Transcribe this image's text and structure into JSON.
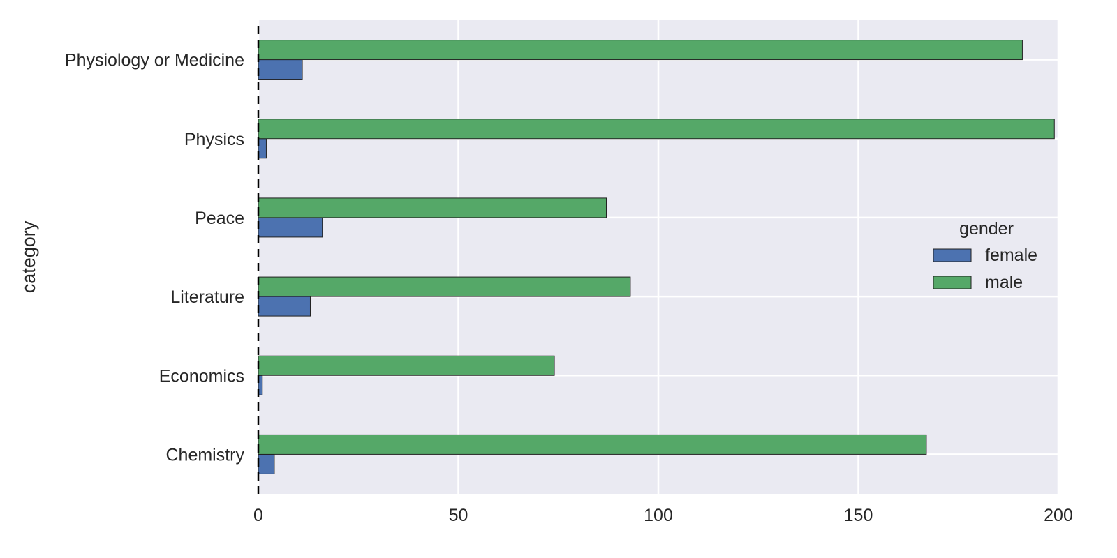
{
  "chart_data": {
    "type": "bar",
    "orientation": "horizontal",
    "categories": [
      "Physiology or Medicine",
      "Physics",
      "Peace",
      "Literature",
      "Economics",
      "Chemistry"
    ],
    "series": [
      {
        "name": "female",
        "values": [
          11,
          2,
          16,
          13,
          1,
          4
        ]
      },
      {
        "name": "male",
        "values": [
          191,
          199,
          87,
          93,
          74,
          167
        ]
      }
    ],
    "xlim": [
      0,
      200
    ],
    "xticks": [
      0,
      50,
      100,
      150,
      200
    ],
    "xlabel": "",
    "ylabel": "category",
    "legend_title": "gender",
    "legend_placement": "right",
    "grid": true,
    "reference_line": {
      "x": 0,
      "style": "dashed"
    },
    "colors": {
      "female": "#4C72B0",
      "male": "#55A868",
      "plot_background": "#EAEAF2",
      "grid": "#ffffff"
    }
  }
}
